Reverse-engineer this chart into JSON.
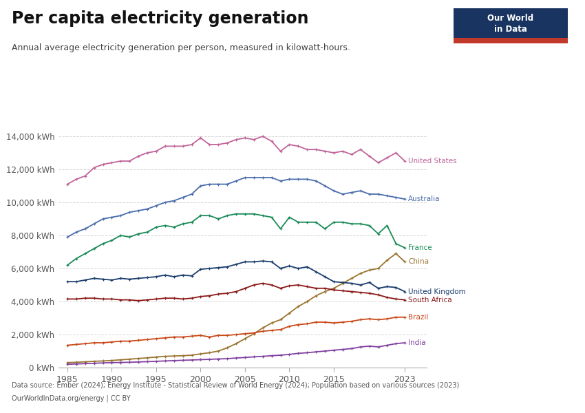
{
  "title": "Per capita electricity generation",
  "subtitle": "Annual average electricity generation per person, measured in kilowatt-hours.",
  "datasource": "Data source: Ember (2024); Energy Institute - Statistical Review of World Energy (2024); Population based on various sources (2023)",
  "license": "OurWorldInData.org/energy | CC BY",
  "background_color": "#ffffff",
  "plot_bg_color": "#ffffff",
  "ylim": [
    0,
    15000
  ],
  "yticks": [
    0,
    2000,
    4000,
    6000,
    8000,
    10000,
    12000,
    14000
  ],
  "ytick_labels": [
    "0 kWh",
    "2,000 kWh",
    "4,000 kWh",
    "6,000 kWh",
    "8,000 kWh",
    "10,000 kWh",
    "12,000 kWh",
    "14,000 kWh"
  ],
  "xticks": [
    1985,
    1990,
    1995,
    2000,
    2005,
    2010,
    2015,
    2023
  ],
  "series": [
    {
      "name": "United States",
      "color": "#c0659a",
      "years": [
        1985,
        1986,
        1987,
        1988,
        1989,
        1990,
        1991,
        1992,
        1993,
        1994,
        1995,
        1996,
        1997,
        1998,
        1999,
        2000,
        2001,
        2002,
        2003,
        2004,
        2005,
        2006,
        2007,
        2008,
        2009,
        2010,
        2011,
        2012,
        2013,
        2014,
        2015,
        2016,
        2017,
        2018,
        2019,
        2020,
        2021,
        2022,
        2023
      ],
      "values": [
        11100,
        11400,
        11600,
        12100,
        12300,
        12400,
        12500,
        12500,
        12800,
        13000,
        13100,
        13400,
        13400,
        13400,
        13500,
        13900,
        13500,
        13500,
        13600,
        13800,
        13900,
        13800,
        14000,
        13700,
        13100,
        13500,
        13400,
        13200,
        13200,
        13100,
        13000,
        13100,
        12900,
        13200,
        12800,
        12400,
        12700,
        13000,
        12500
      ]
    },
    {
      "name": "Australia",
      "color": "#4c6dac",
      "years": [
        1985,
        1986,
        1987,
        1988,
        1989,
        1990,
        1991,
        1992,
        1993,
        1994,
        1995,
        1996,
        1997,
        1998,
        1999,
        2000,
        2001,
        2002,
        2003,
        2004,
        2005,
        2006,
        2007,
        2008,
        2009,
        2010,
        2011,
        2012,
        2013,
        2014,
        2015,
        2016,
        2017,
        2018,
        2019,
        2020,
        2021,
        2022,
        2023
      ],
      "values": [
        7900,
        8200,
        8400,
        8700,
        9000,
        9100,
        9200,
        9400,
        9500,
        9600,
        9800,
        10000,
        10100,
        10300,
        10500,
        11000,
        11100,
        11100,
        11100,
        11300,
        11500,
        11500,
        11500,
        11500,
        11300,
        11400,
        11400,
        11400,
        11300,
        11000,
        10700,
        10500,
        10600,
        10700,
        10500,
        10500,
        10400,
        10300,
        10200
      ]
    },
    {
      "name": "France",
      "color": "#1a8a57",
      "years": [
        1985,
        1986,
        1987,
        1988,
        1989,
        1990,
        1991,
        1992,
        1993,
        1994,
        1995,
        1996,
        1997,
        1998,
        1999,
        2000,
        2001,
        2002,
        2003,
        2004,
        2005,
        2006,
        2007,
        2008,
        2009,
        2010,
        2011,
        2012,
        2013,
        2014,
        2015,
        2016,
        2017,
        2018,
        2019,
        2020,
        2021,
        2022,
        2023
      ],
      "values": [
        6200,
        6600,
        6900,
        7200,
        7500,
        7700,
        8000,
        7900,
        8100,
        8200,
        8500,
        8600,
        8500,
        8700,
        8800,
        9200,
        9200,
        9000,
        9200,
        9300,
        9300,
        9300,
        9200,
        9100,
        8400,
        9100,
        8800,
        8800,
        8800,
        8400,
        8800,
        8800,
        8700,
        8700,
        8600,
        8100,
        8600,
        7500,
        7250
      ]
    },
    {
      "name": "China",
      "color": "#9a7530",
      "years": [
        1985,
        1986,
        1987,
        1988,
        1989,
        1990,
        1991,
        1992,
        1993,
        1994,
        1995,
        1996,
        1997,
        1998,
        1999,
        2000,
        2001,
        2002,
        2003,
        2004,
        2005,
        2006,
        2007,
        2008,
        2009,
        2010,
        2011,
        2012,
        2013,
        2014,
        2015,
        2016,
        2017,
        2018,
        2019,
        2020,
        2021,
        2022,
        2023
      ],
      "values": [
        300,
        320,
        350,
        380,
        400,
        430,
        470,
        510,
        550,
        590,
        640,
        680,
        700,
        720,
        750,
        830,
        900,
        1000,
        1200,
        1450,
        1750,
        2050,
        2400,
        2700,
        2900,
        3300,
        3700,
        4000,
        4350,
        4600,
        4800,
        5100,
        5400,
        5700,
        5900,
        6000,
        6500,
        6900,
        6400
      ]
    },
    {
      "name": "United Kingdom",
      "color": "#1a3d6e",
      "years": [
        1985,
        1986,
        1987,
        1988,
        1989,
        1990,
        1991,
        1992,
        1993,
        1994,
        1995,
        1996,
        1997,
        1998,
        1999,
        2000,
        2001,
        2002,
        2003,
        2004,
        2005,
        2006,
        2007,
        2008,
        2009,
        2010,
        2011,
        2012,
        2013,
        2014,
        2015,
        2016,
        2017,
        2018,
        2019,
        2020,
        2021,
        2022,
        2023
      ],
      "values": [
        5200,
        5200,
        5300,
        5400,
        5350,
        5300,
        5400,
        5350,
        5400,
        5450,
        5500,
        5600,
        5500,
        5600,
        5550,
        5950,
        6000,
        6050,
        6100,
        6250,
        6400,
        6400,
        6450,
        6400,
        6000,
        6150,
        6000,
        6100,
        5800,
        5500,
        5200,
        5150,
        5100,
        5000,
        5150,
        4800,
        4900,
        4850,
        4600
      ]
    },
    {
      "name": "South Africa",
      "color": "#8b1a1a",
      "years": [
        1985,
        1986,
        1987,
        1988,
        1989,
        1990,
        1991,
        1992,
        1993,
        1994,
        1995,
        1996,
        1997,
        1998,
        1999,
        2000,
        2001,
        2002,
        2003,
        2004,
        2005,
        2006,
        2007,
        2008,
        2009,
        2010,
        2011,
        2012,
        2013,
        2014,
        2015,
        2016,
        2017,
        2018,
        2019,
        2020,
        2021,
        2022,
        2023
      ],
      "values": [
        4150,
        4150,
        4200,
        4200,
        4150,
        4150,
        4100,
        4100,
        4050,
        4100,
        4150,
        4200,
        4200,
        4150,
        4200,
        4300,
        4350,
        4450,
        4500,
        4600,
        4800,
        5000,
        5100,
        5000,
        4800,
        4950,
        5000,
        4900,
        4800,
        4800,
        4700,
        4650,
        4600,
        4550,
        4500,
        4400,
        4250,
        4150,
        4100
      ]
    },
    {
      "name": "Brazil",
      "color": "#c94a1a",
      "years": [
        1985,
        1986,
        1987,
        1988,
        1989,
        1990,
        1991,
        1992,
        1993,
        1994,
        1995,
        1996,
        1997,
        1998,
        1999,
        2000,
        2001,
        2002,
        2003,
        2004,
        2005,
        2006,
        2007,
        2008,
        2009,
        2010,
        2011,
        2012,
        2013,
        2014,
        2015,
        2016,
        2017,
        2018,
        2019,
        2020,
        2021,
        2022,
        2023
      ],
      "values": [
        1350,
        1400,
        1450,
        1500,
        1500,
        1550,
        1600,
        1600,
        1650,
        1700,
        1750,
        1800,
        1850,
        1850,
        1900,
        1950,
        1850,
        1950,
        1950,
        2000,
        2050,
        2100,
        2200,
        2250,
        2300,
        2500,
        2600,
        2650,
        2750,
        2750,
        2700,
        2750,
        2800,
        2900,
        2950,
        2900,
        2950,
        3050,
        3050
      ]
    },
    {
      "name": "India",
      "color": "#8040a0",
      "years": [
        1985,
        1986,
        1987,
        1988,
        1989,
        1990,
        1991,
        1992,
        1993,
        1994,
        1995,
        1996,
        1997,
        1998,
        1999,
        2000,
        2001,
        2002,
        2003,
        2004,
        2005,
        2006,
        2007,
        2008,
        2009,
        2010,
        2011,
        2012,
        2013,
        2014,
        2015,
        2016,
        2017,
        2018,
        2019,
        2020,
        2021,
        2022,
        2023
      ],
      "values": [
        200,
        220,
        240,
        260,
        280,
        300,
        310,
        320,
        340,
        360,
        380,
        400,
        420,
        440,
        460,
        480,
        500,
        520,
        540,
        580,
        610,
        650,
        680,
        720,
        750,
        800,
        860,
        900,
        950,
        1000,
        1050,
        1100,
        1150,
        1250,
        1300,
        1250,
        1350,
        1450,
        1500
      ]
    }
  ]
}
